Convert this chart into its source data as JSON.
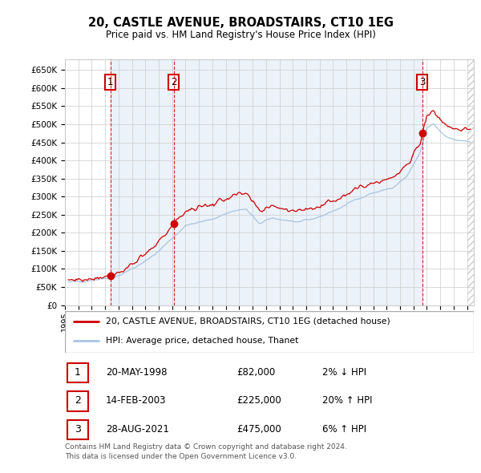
{
  "title": "20, CASTLE AVENUE, BROADSTAIRS, CT10 1EG",
  "subtitle": "Price paid vs. HM Land Registry's House Price Index (HPI)",
  "sales": [
    {
      "label": "1",
      "date": "1998-05-20",
      "price": 82000,
      "note": "2% ↓ HPI",
      "x_year": 1998.38
    },
    {
      "label": "2",
      "date": "2003-02-14",
      "price": 225000,
      "note": "20% ↑ HPI",
      "x_year": 2003.12
    },
    {
      "label": "3",
      "date": "2021-08-28",
      "price": 475000,
      "note": "6% ↑ HPI",
      "x_year": 2021.66
    }
  ],
  "legend_line1": "20, CASTLE AVENUE, BROADSTAIRS, CT10 1EG (detached house)",
  "legend_line2": "HPI: Average price, detached house, Thanet",
  "table_rows": [
    [
      "1",
      "20-MAY-1998",
      "£82,000",
      "2% ↓ HPI"
    ],
    [
      "2",
      "14-FEB-2003",
      "£225,000",
      "20% ↑ HPI"
    ],
    [
      "3",
      "28-AUG-2021",
      "£475,000",
      "6% ↑ HPI"
    ]
  ],
  "footer": "Contains HM Land Registry data © Crown copyright and database right 2024.\nThis data is licensed under the Open Government Licence v3.0.",
  "hpi_color": "#a8c4e0",
  "price_color": "#cc0000",
  "dot_color": "#cc0000",
  "bg_shade_color": "#dce8f5",
  "grid_color": "#cccccc",
  "ylim": [
    0,
    680000
  ],
  "yticks": [
    0,
    50000,
    100000,
    150000,
    200000,
    250000,
    300000,
    350000,
    400000,
    450000,
    500000,
    550000,
    600000,
    650000
  ],
  "xlim_start": 1995.25,
  "xlim_end": 2025.5
}
